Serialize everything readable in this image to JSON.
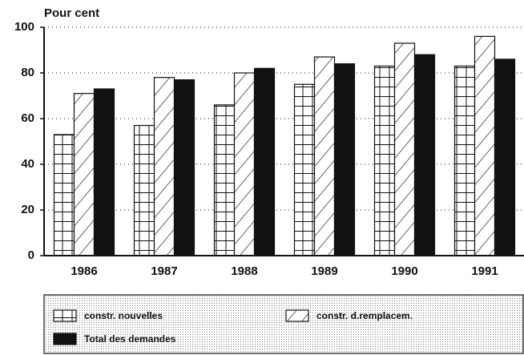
{
  "chart_data": {
    "type": "bar",
    "ylabel": "Pour cent",
    "categories": [
      "1986",
      "1987",
      "1988",
      "1989",
      "1990",
      "1991"
    ],
    "series": [
      {
        "name": "constr. nouvelles",
        "color": "#111111",
        "pattern": "grid",
        "values": [
          53,
          57,
          66,
          75,
          83,
          83
        ]
      },
      {
        "name": "constr. d.remplacem.",
        "color": "#111111",
        "pattern": "hatch",
        "values": [
          71,
          78,
          80,
          87,
          93,
          96
        ]
      },
      {
        "name": "Total des demandes",
        "color": "#111111",
        "pattern": "solid",
        "values": [
          73,
          77,
          82,
          84,
          88,
          86
        ]
      }
    ],
    "ylim": [
      0,
      100
    ],
    "yticks": [
      0,
      20,
      40,
      60,
      80,
      100
    ],
    "grid": true
  }
}
